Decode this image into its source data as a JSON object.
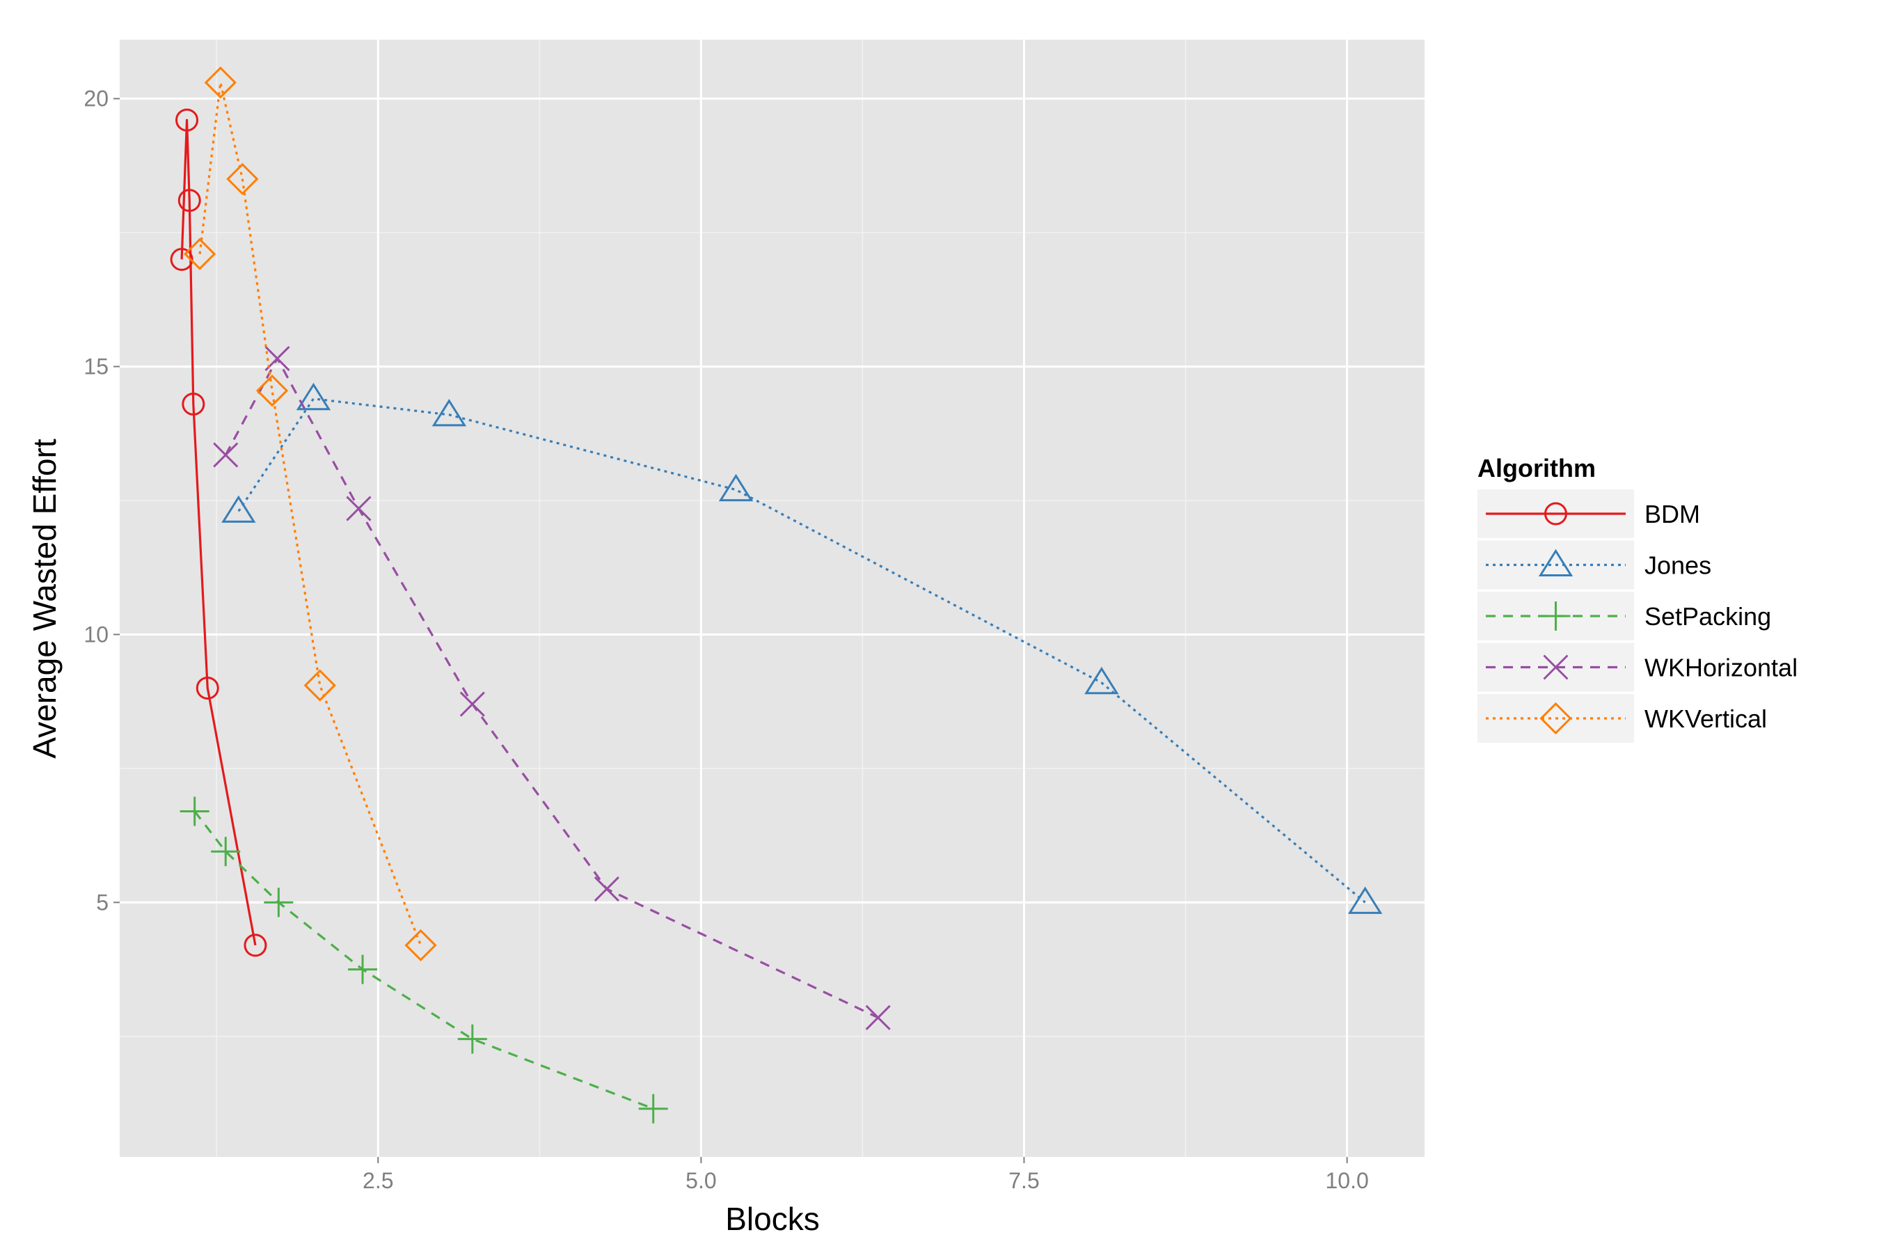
{
  "chart_data": {
    "type": "line",
    "title": "",
    "xlabel": "Blocks",
    "ylabel": "Average Wasted Effort",
    "xlim": [
      0.5,
      10.6
    ],
    "ylim": [
      0.25,
      21.1
    ],
    "x_ticks": [
      2.5,
      5.0,
      7.5,
      10.0
    ],
    "x_tick_labels": [
      "2.5",
      "5.0",
      "7.5",
      "10.0"
    ],
    "y_ticks": [
      5,
      10,
      15,
      20
    ],
    "y_tick_labels": [
      "5",
      "10",
      "15",
      "20"
    ],
    "grid": true,
    "panel_background": "#e5e5e5",
    "legend": {
      "title": "Algorithm",
      "position": "right"
    },
    "series": [
      {
        "name": "BDM",
        "color": "#e41a1c",
        "line_style": "solid",
        "marker": "circle",
        "x": [
          1.55,
          1.18,
          1.07,
          1.04,
          1.02,
          0.98
        ],
        "y": [
          4.2,
          9.0,
          14.3,
          18.1,
          19.6,
          17.0
        ]
      },
      {
        "name": "Jones",
        "color": "#377eb8",
        "line_style": "dotted",
        "marker": "triangle",
        "x": [
          1.42,
          2.0,
          3.05,
          5.27,
          8.1,
          10.14
        ],
        "y": [
          12.3,
          14.4,
          14.1,
          12.7,
          9.1,
          5.0
        ]
      },
      {
        "name": "SetPacking",
        "color": "#4daf4a",
        "line_style": "dashed",
        "marker": "plus",
        "x": [
          1.08,
          1.32,
          1.73,
          2.38,
          3.23,
          4.63
        ],
        "y": [
          6.7,
          5.95,
          5.0,
          3.75,
          2.45,
          1.15
        ]
      },
      {
        "name": "WKHorizontal",
        "color": "#984ea3",
        "line_style": "dashed",
        "marker": "x",
        "x": [
          1.32,
          1.72,
          2.35,
          3.23,
          4.27,
          6.37
        ],
        "y": [
          13.35,
          15.15,
          12.35,
          8.7,
          5.25,
          2.85
        ]
      },
      {
        "name": "WKVertical",
        "color": "#ff7f00",
        "line_style": "dotted",
        "marker": "diamond",
        "x": [
          1.12,
          1.28,
          1.45,
          1.68,
          2.05,
          2.83
        ],
        "y": [
          17.1,
          20.3,
          18.5,
          14.55,
          9.05,
          4.2
        ]
      }
    ]
  }
}
